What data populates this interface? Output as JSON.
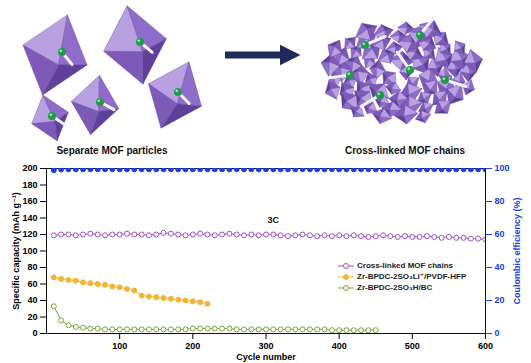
{
  "illustration": {
    "left_label": "Separate MOF particles",
    "right_label": "Cross-linked MOF chains"
  },
  "chart_data": {
    "type": "line",
    "xlabel": "Cycle number",
    "ylabel": "Specific capacity (mAh g⁻¹)",
    "y2label": "Coulombic efficiency (%)",
    "x": [
      10,
      20,
      30,
      40,
      50,
      60,
      70,
      80,
      90,
      100,
      110,
      120,
      130,
      140,
      150,
      160,
      170,
      180,
      190,
      200,
      210,
      220,
      230,
      240,
      250,
      260,
      270,
      280,
      290,
      300,
      310,
      320,
      330,
      340,
      350,
      360,
      370,
      380,
      390,
      400,
      410,
      420,
      430,
      440,
      450,
      460,
      470,
      480,
      490,
      500,
      510,
      520,
      530,
      540,
      550,
      560,
      570,
      580,
      590,
      600
    ],
    "xlim": [
      0,
      600
    ],
    "xticks": [
      100,
      200,
      300,
      400,
      500,
      600
    ],
    "ylim": [
      0,
      200
    ],
    "yticks": [
      0,
      20,
      40,
      60,
      80,
      100,
      120,
      140,
      160,
      180,
      200
    ],
    "y2lim": [
      0,
      100
    ],
    "y2ticks": [
      0,
      20,
      40,
      60,
      80,
      100
    ],
    "grid": false,
    "legend": "lower right",
    "annotations": [
      {
        "text": "3C",
        "x": 310,
        "y": 138
      }
    ],
    "series": [
      {
        "name": "Cross-linked MOF chains",
        "color": "#a24cc8",
        "marker": "circle-open",
        "line_style": "solid",
        "values": [
          119,
          120,
          120,
          119,
          120,
          121,
          120,
          119,
          120,
          120,
          121,
          120,
          120,
          119,
          120,
          122,
          121,
          120,
          119,
          120,
          121,
          120,
          119,
          120,
          121,
          120,
          119,
          120,
          119,
          120,
          120,
          119,
          118,
          119,
          120,
          119,
          118,
          119,
          118,
          119,
          118,
          119,
          118,
          117,
          118,
          119,
          118,
          117,
          118,
          117,
          117,
          118,
          117,
          116,
          117,
          116,
          116,
          115,
          115,
          114
        ]
      },
      {
        "name": "Zr-BPDC-2SO₃Li⁺/PVDF-HFP",
        "color": "#f5b531",
        "marker": "circle",
        "line_style": "solid",
        "values": [
          68,
          66,
          65,
          64,
          62,
          61,
          60,
          59,
          57,
          56,
          54,
          52,
          46,
          45,
          44,
          43,
          42,
          41,
          40,
          39,
          38,
          36,
          null,
          null,
          null,
          null,
          null,
          null,
          null,
          null,
          null,
          null,
          null,
          null,
          null,
          null,
          null,
          null,
          null,
          null,
          null,
          null,
          null,
          null,
          null,
          null,
          null,
          null,
          null,
          null,
          null,
          null,
          null,
          null,
          null,
          null,
          null,
          null,
          null,
          null
        ]
      },
      {
        "name": "Zr-BPDC-2SO₃H/BC",
        "color": "#7aa33d",
        "marker": "circle-open",
        "line_style": "solid",
        "values": [
          33,
          16,
          10,
          8,
          7,
          6,
          6,
          5,
          5,
          5,
          5,
          5,
          5,
          5,
          5,
          5,
          5,
          5,
          5,
          6,
          6,
          6,
          6,
          6,
          6,
          5,
          5,
          5,
          5,
          5,
          5,
          5,
          5,
          5,
          5,
          5,
          5,
          5,
          4,
          4,
          4,
          4,
          4,
          4,
          4,
          null,
          null,
          null,
          null,
          null,
          null,
          null,
          null,
          null,
          null,
          null,
          null,
          null,
          null,
          null
        ]
      },
      {
        "color": "#1d3de0",
        "marker": "circle",
        "line_style": "none",
        "axis": "y2",
        "values": [
          99.0,
          99.4,
          99.5,
          99.5,
          99.5,
          99.6,
          99.5,
          99.5,
          99.6,
          99.5,
          99.5,
          99.5,
          99.6,
          99.5,
          99.5,
          99.5,
          99.6,
          99.5,
          99.5,
          99.5,
          99.6,
          99.5,
          99.5,
          99.5,
          99.5,
          99.6,
          99.5,
          99.5,
          99.5,
          99.6,
          99.5,
          99.5,
          99.5,
          99.5,
          99.6,
          99.5,
          99.5,
          99.5,
          99.6,
          99.5,
          99.5,
          99.5,
          99.5,
          99.6,
          99.5,
          99.5,
          99.5,
          99.6,
          99.5,
          99.5,
          99.5,
          99.5,
          99.6,
          99.5,
          99.5,
          99.5,
          99.6,
          99.5,
          99.5,
          99.5
        ]
      }
    ]
  }
}
